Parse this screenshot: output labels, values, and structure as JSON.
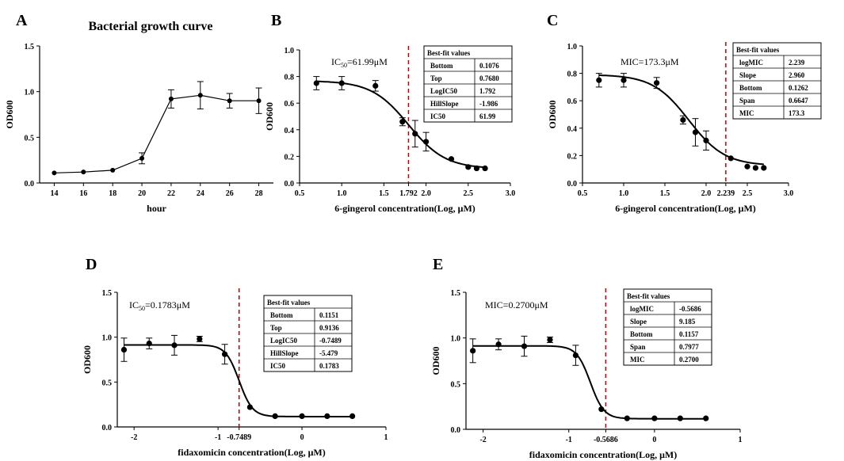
{
  "chart_data": [
    {
      "panel": "A",
      "type": "line",
      "title": "Bacterial growth curve",
      "xlabel": "hour",
      "ylabel": "OD600",
      "xlim": [
        13,
        29
      ],
      "ylim": [
        0,
        1.5
      ],
      "xticks": [
        14,
        16,
        18,
        20,
        22,
        24,
        26,
        28
      ],
      "xtick_labels": [
        "14",
        "16",
        "18",
        "20",
        "22",
        "24",
        "26",
        "28"
      ],
      "yticks": [
        0,
        0.5,
        1.0,
        1.5
      ],
      "ytick_labels": [
        "0.0",
        "0.5",
        "1.0",
        "1.5"
      ],
      "x": [
        14,
        16,
        18,
        20,
        22,
        24,
        26,
        28
      ],
      "y": [
        0.11,
        0.12,
        0.14,
        0.27,
        0.92,
        0.96,
        0.9,
        0.9
      ],
      "err": [
        0.0,
        0.0,
        0.0,
        0.06,
        0.1,
        0.15,
        0.08,
        0.14
      ]
    },
    {
      "panel": "B",
      "type": "scatter",
      "fit": {
        "model": "four-parameter logistic",
        "bottom": 0.1076,
        "top": 0.768,
        "logx50": 1.792,
        "hill": -1.986
      },
      "annotation_prefix": "IC",
      "annotation_sub": "50",
      "annotation_value": "=61.99μM",
      "xlabel": "6-gingerol concentration(Log, μM)",
      "ylabel": "OD600",
      "xlim": [
        0.5,
        3.0
      ],
      "ylim": [
        0,
        1.0
      ],
      "xticks": [
        0.5,
        1.0,
        1.5,
        1.792,
        2.0,
        2.5,
        3.0
      ],
      "xtick_labels": [
        "0.5",
        "1.0",
        "1.5",
        "1.792",
        "2.0",
        "2.5",
        "3.0"
      ],
      "yticks": [
        0,
        0.2,
        0.4,
        0.6,
        0.8,
        1.0
      ],
      "ytick_labels": [
        "0.0",
        "0.2",
        "0.4",
        "0.6",
        "0.8",
        "1.0"
      ],
      "vline": 1.792,
      "x": [
        0.7,
        1.0,
        1.4,
        1.72,
        1.87,
        2.0,
        2.3,
        2.5,
        2.6,
        2.7
      ],
      "y": [
        0.75,
        0.75,
        0.73,
        0.46,
        0.37,
        0.31,
        0.18,
        0.12,
        0.11,
        0.11
      ],
      "err": [
        0.05,
        0.05,
        0.04,
        0.03,
        0.1,
        0.07,
        0.0,
        0.0,
        0.0,
        0.0
      ],
      "table_header": "Best-fit values",
      "table": [
        [
          "Bottom",
          "0.1076"
        ],
        [
          "Top",
          "0.7680"
        ],
        [
          "LogIC50",
          "1.792"
        ],
        [
          "HillSlope",
          "-1.986"
        ],
        [
          "IC50",
          "61.99"
        ]
      ]
    },
    {
      "panel": "C",
      "type": "scatter",
      "fit": {
        "model": "four-parameter logistic",
        "bottom": 0.1262,
        "top": 0.7909,
        "logx50": 1.79,
        "hill": -1.986
      },
      "annotation_prefix": "MIC",
      "annotation_sub": "",
      "annotation_value": "=173.3μM",
      "xlabel": "6-gingerol concentration(Log, μM)",
      "ylabel": "OD600",
      "xlim": [
        0.5,
        3.0
      ],
      "ylim": [
        0,
        1.0
      ],
      "xticks": [
        0.5,
        1.0,
        1.5,
        2.0,
        2.239,
        2.5,
        3.0
      ],
      "xtick_labels": [
        "0.5",
        "1.0",
        "1.5",
        "2.0",
        "2.239",
        "2.5",
        "3.0"
      ],
      "yticks": [
        0,
        0.2,
        0.4,
        0.6,
        0.8,
        1.0
      ],
      "ytick_labels": [
        "0.0",
        "0.2",
        "0.4",
        "0.6",
        "0.8",
        "1.0"
      ],
      "vline": 2.239,
      "x": [
        0.7,
        1.0,
        1.4,
        1.72,
        1.87,
        2.0,
        2.3,
        2.5,
        2.6,
        2.7
      ],
      "y": [
        0.75,
        0.75,
        0.73,
        0.46,
        0.37,
        0.31,
        0.18,
        0.12,
        0.11,
        0.11
      ],
      "err": [
        0.05,
        0.05,
        0.04,
        0.03,
        0.1,
        0.07,
        0.0,
        0.0,
        0.0,
        0.0
      ],
      "table_header": "Best-fit values",
      "table": [
        [
          "logMIC",
          "2.239"
        ],
        [
          "Slope",
          "2.960"
        ],
        [
          "Bottom",
          "0.1262"
        ],
        [
          "Span",
          "0.6647"
        ],
        [
          "MIC",
          "173.3"
        ]
      ]
    },
    {
      "panel": "D",
      "type": "scatter",
      "fit": {
        "model": "four-parameter logistic",
        "bottom": 0.1151,
        "top": 0.9136,
        "logx50": -0.7489,
        "hill": -5.479
      },
      "annotation_prefix": "IC",
      "annotation_sub": "50",
      "annotation_value": "=0.1783μM",
      "xlabel": "fidaxomicin concentration(Log, μM)",
      "ylabel": "OD600",
      "xlim": [
        -2.2,
        1.0
      ],
      "ylim": [
        0,
        1.5
      ],
      "xticks": [
        -1,
        -0.7489,
        0,
        1
      ],
      "xtick_labels": [
        "-1",
        "-0.7489",
        "0",
        "1"
      ],
      "xticks_extra": [
        -2
      ],
      "xticks_extra_labels": [
        "-2"
      ],
      "yticks": [
        0,
        0.5,
        1.0,
        1.5
      ],
      "ytick_labels": [
        "0.0",
        "0.5",
        "1.0",
        "1.5"
      ],
      "vline": -0.7489,
      "x": [
        -2.12,
        -1.82,
        -1.52,
        -1.22,
        -0.92,
        -0.62,
        -0.32,
        0.0,
        0.3,
        0.6
      ],
      "y": [
        0.86,
        0.93,
        0.91,
        0.98,
        0.81,
        0.22,
        0.12,
        0.12,
        0.12,
        0.12
      ],
      "err": [
        0.13,
        0.06,
        0.11,
        0.03,
        0.11,
        0.0,
        0.0,
        0.0,
        0.0,
        0.0
      ],
      "table_header": "Best-fit values",
      "table": [
        [
          "Bottom",
          "0.1151"
        ],
        [
          "Top",
          "0.9136"
        ],
        [
          "LogIC50",
          "-0.7489"
        ],
        [
          "HillSlope",
          "-5.479"
        ],
        [
          "IC50",
          "0.1783"
        ]
      ]
    },
    {
      "panel": "E",
      "type": "scatter",
      "fit": {
        "model": "four-parameter logistic",
        "bottom": 0.1157,
        "top": 0.9134,
        "logx50": -0.7489,
        "hill": -5.479
      },
      "annotation_prefix": "MIC",
      "annotation_sub": "",
      "annotation_value": "=0.2700μM",
      "xlabel": "fidaxomicin concentration(Log, μM)",
      "ylabel": "OD600",
      "xlim": [
        -2.2,
        1.0
      ],
      "ylim": [
        0,
        1.5
      ],
      "xticks": [
        -1,
        -0.5686,
        0,
        1
      ],
      "xtick_labels": [
        "-1",
        "-0.5686",
        "0",
        "1"
      ],
      "xticks_extra": [
        -2
      ],
      "xticks_extra_labels": [
        "-2"
      ],
      "yticks": [
        0,
        0.5,
        1.0,
        1.5
      ],
      "ytick_labels": [
        "0.0",
        "0.5",
        "1.0",
        "1.5"
      ],
      "vline": -0.5686,
      "x": [
        -2.12,
        -1.82,
        -1.52,
        -1.22,
        -0.92,
        -0.62,
        -0.32,
        0.0,
        0.3,
        0.6
      ],
      "y": [
        0.86,
        0.93,
        0.91,
        0.98,
        0.81,
        0.22,
        0.12,
        0.12,
        0.12,
        0.12
      ],
      "err": [
        0.13,
        0.06,
        0.11,
        0.03,
        0.11,
        0.0,
        0.0,
        0.0,
        0.0,
        0.0
      ],
      "table_header": "Best-fit values",
      "table": [
        [
          "logMIC",
          "-0.5686"
        ],
        [
          "Slope",
          "9.185"
        ],
        [
          "Bottom",
          "0.1157"
        ],
        [
          "Span",
          "0.7977"
        ],
        [
          "MIC",
          "0.2700"
        ]
      ]
    }
  ],
  "colors": {
    "ink": "#000000",
    "threshold": "#c00000",
    "background": "#ffffff"
  }
}
